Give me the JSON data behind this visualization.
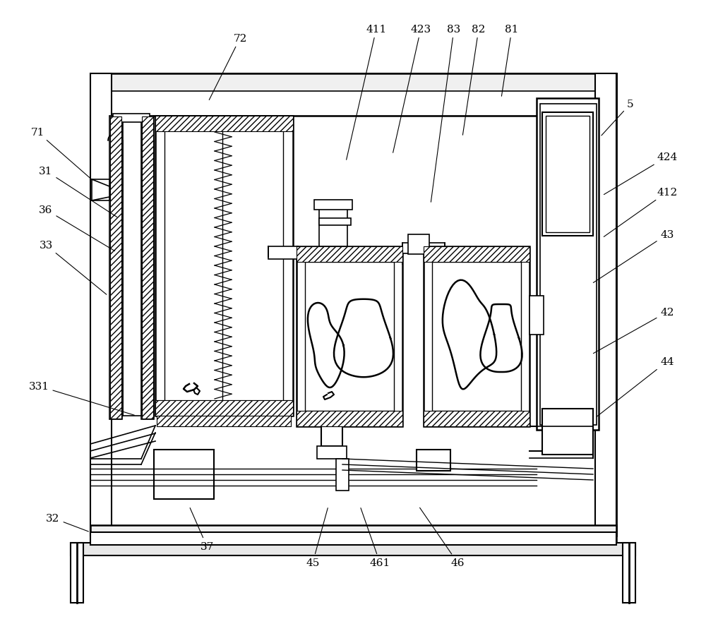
{
  "bg_color": "#ffffff",
  "lc": "#000000",
  "figsize": [
    10.0,
    8.95
  ],
  "dpi": 100,
  "labels_data": [
    [
      "72",
      340,
      55,
      295,
      145
    ],
    [
      "411",
      533,
      42,
      490,
      230
    ],
    [
      "423",
      596,
      42,
      556,
      220
    ],
    [
      "83",
      643,
      42,
      610,
      290
    ],
    [
      "82",
      678,
      42,
      655,
      195
    ],
    [
      "81",
      725,
      42,
      710,
      140
    ],
    [
      "5",
      893,
      148,
      850,
      195
    ],
    [
      "71",
      53,
      188,
      133,
      258
    ],
    [
      "31",
      65,
      243,
      168,
      310
    ],
    [
      "36",
      65,
      298,
      165,
      358
    ],
    [
      "33",
      65,
      348,
      153,
      420
    ],
    [
      "424",
      945,
      223,
      853,
      278
    ],
    [
      "412",
      945,
      273,
      853,
      338
    ],
    [
      "43",
      945,
      333,
      838,
      403
    ],
    [
      "42",
      945,
      443,
      838,
      503
    ],
    [
      "44",
      945,
      513,
      843,
      593
    ],
    [
      "331",
      55,
      548,
      193,
      590
    ],
    [
      "32",
      75,
      735,
      128,
      755
    ],
    [
      "37",
      293,
      775,
      268,
      718
    ],
    [
      "45",
      443,
      798,
      465,
      718
    ],
    [
      "461",
      538,
      798,
      510,
      718
    ],
    [
      "46",
      648,
      798,
      593,
      718
    ]
  ]
}
